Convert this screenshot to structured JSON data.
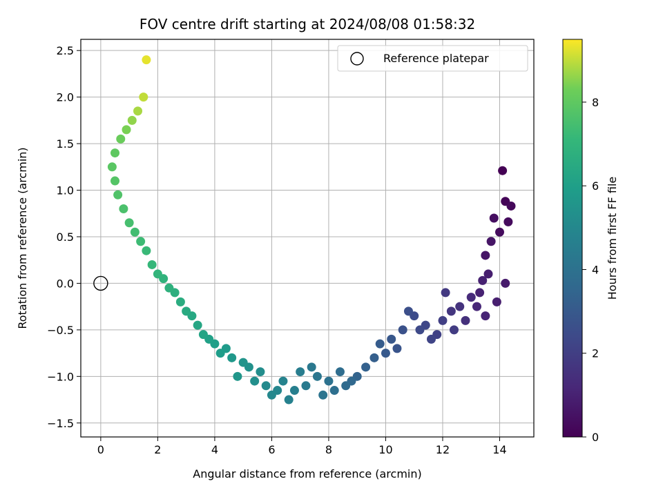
{
  "chart_data": {
    "type": "scatter",
    "title": "FOV centre drift starting at 2024/08/08 01:58:32",
    "xlabel": "Angular distance from reference (arcmin)",
    "ylabel": "Rotation from reference (arcmin)",
    "xlim": [
      -0.7,
      15.2
    ],
    "ylim": [
      -1.65,
      2.62
    ],
    "xticks": [
      0,
      2,
      4,
      6,
      8,
      10,
      12,
      14
    ],
    "yticks": [
      -1.5,
      -1.0,
      -0.5,
      0.0,
      0.5,
      1.0,
      1.5,
      2.0,
      2.5
    ],
    "xtick_labels": [
      "0",
      "2",
      "4",
      "6",
      "8",
      "10",
      "12",
      "14"
    ],
    "ytick_labels": [
      "−1.5",
      "−1.0",
      "−0.5",
      "0.0",
      "0.5",
      "1.0",
      "1.5",
      "2.0",
      "2.5"
    ],
    "grid": true,
    "legend": {
      "placement": "upper-right",
      "entries": [
        "Reference platepar"
      ]
    },
    "reference_point": {
      "x": 0.0,
      "y": 0.0
    },
    "colorbar": {
      "label": "Hours from first FF file",
      "range": [
        0,
        9.5
      ],
      "ticks": [
        0,
        2,
        4,
        6,
        8
      ],
      "tick_labels": [
        "0",
        "2",
        "4",
        "6",
        "8"
      ],
      "colormap": "viridis"
    },
    "series": [
      {
        "color_by": "hours",
        "x": [
          14.1,
          14.2,
          14.0,
          13.8,
          13.5,
          14.4,
          14.3,
          13.7,
          14.2,
          13.6,
          13.3,
          13.5,
          13.9,
          13.2,
          13.4,
          13.0,
          12.8,
          12.6,
          12.3,
          12.1,
          12.4,
          12.0,
          11.8,
          11.6,
          11.4,
          11.2,
          11.0,
          10.8,
          10.6,
          10.4,
          10.2,
          10.0,
          9.8,
          9.6,
          9.3,
          9.0,
          8.8,
          8.6,
          8.4,
          8.2,
          8.0,
          7.8,
          7.6,
          7.4,
          7.2,
          7.0,
          6.8,
          6.6,
          6.4,
          6.2,
          6.0,
          5.8,
          5.6,
          5.4,
          5.2,
          5.0,
          4.8,
          4.6,
          4.4,
          4.2,
          4.0,
          3.8,
          3.6,
          3.4,
          3.2,
          3.0,
          2.8,
          2.6,
          2.4,
          2.2,
          2.0,
          1.8,
          1.6,
          1.4,
          1.2,
          1.0,
          0.8,
          0.6,
          0.5,
          0.4,
          0.5,
          0.7,
          0.9,
          1.1,
          1.3,
          1.5,
          1.6
        ],
        "y": [
          1.21,
          0.88,
          0.55,
          0.7,
          0.3,
          0.83,
          0.66,
          0.45,
          0.0,
          0.1,
          -0.1,
          -0.35,
          -0.2,
          -0.25,
          0.03,
          -0.15,
          -0.4,
          -0.25,
          -0.3,
          -0.1,
          -0.5,
          -0.4,
          -0.55,
          -0.6,
          -0.45,
          -0.5,
          -0.35,
          -0.3,
          -0.5,
          -0.7,
          -0.6,
          -0.75,
          -0.65,
          -0.8,
          -0.9,
          -1.0,
          -1.05,
          -1.1,
          -0.95,
          -1.15,
          -1.05,
          -1.2,
          -1.0,
          -0.9,
          -1.1,
          -0.95,
          -1.15,
          -1.25,
          -1.05,
          -1.15,
          -1.2,
          -1.1,
          -0.95,
          -1.05,
          -0.9,
          -0.85,
          -1.0,
          -0.8,
          -0.7,
          -0.75,
          -0.65,
          -0.6,
          -0.55,
          -0.45,
          -0.35,
          -0.3,
          -0.2,
          -0.1,
          -0.05,
          0.05,
          0.1,
          0.2,
          0.35,
          0.45,
          0.55,
          0.65,
          0.8,
          0.95,
          1.1,
          1.25,
          1.4,
          1.55,
          1.65,
          1.75,
          1.85,
          2.0,
          2.4
        ],
        "hours": [
          0.0,
          0.1,
          0.3,
          0.4,
          0.6,
          0.2,
          0.3,
          0.6,
          0.8,
          0.9,
          1.0,
          1.1,
          0.9,
          1.2,
          1.0,
          1.3,
          1.5,
          1.6,
          1.7,
          1.8,
          1.9,
          2.0,
          2.1,
          2.2,
          2.3,
          2.4,
          2.5,
          2.6,
          2.7,
          2.8,
          2.9,
          3.0,
          3.1,
          3.2,
          3.3,
          3.4,
          3.6,
          3.7,
          3.8,
          3.9,
          4.0,
          4.1,
          4.2,
          4.3,
          4.4,
          4.5,
          4.6,
          4.7,
          4.8,
          4.9,
          5.0,
          5.1,
          5.2,
          5.3,
          5.4,
          5.5,
          5.6,
          5.7,
          5.8,
          5.9,
          6.0,
          6.1,
          6.2,
          6.3,
          6.4,
          6.5,
          6.6,
          6.7,
          6.8,
          6.9,
          7.0,
          7.1,
          7.2,
          7.3,
          7.4,
          7.5,
          7.6,
          7.7,
          7.8,
          7.9,
          8.0,
          8.2,
          8.4,
          8.6,
          8.8,
          9.0,
          9.3
        ]
      }
    ]
  }
}
